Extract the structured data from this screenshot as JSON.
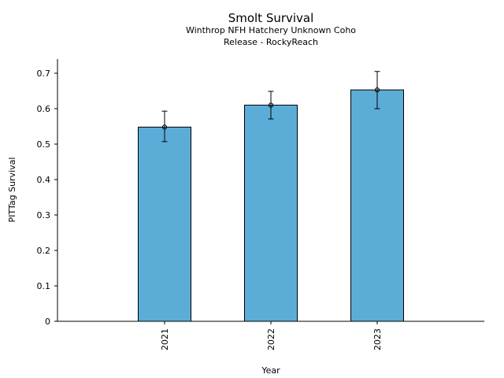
{
  "chart_data": {
    "type": "bar",
    "title": "Smolt Survival",
    "subtitle_lines": [
      "Winthrop NFH Hatchery Unknown Coho",
      "Release - RockyReach"
    ],
    "xlabel": "Year",
    "ylabel": "PITTag Survival",
    "categories": [
      "2021",
      "2022",
      "2023"
    ],
    "values": [
      0.548,
      0.61,
      0.653
    ],
    "error_low": [
      0.507,
      0.571,
      0.6
    ],
    "error_high": [
      0.593,
      0.649,
      0.705
    ],
    "ylim": [
      0,
      0.74
    ],
    "yticks": [
      0,
      0.1,
      0.2,
      0.3,
      0.4,
      0.5,
      0.6,
      0.7
    ],
    "ytick_labels": [
      "0",
      "0.1",
      "0.2",
      "0.3",
      "0.4",
      "0.5",
      "0.6",
      "0.7"
    ],
    "grid": false,
    "bar_color": "#5BADD7",
    "edge_color": "#000000"
  }
}
